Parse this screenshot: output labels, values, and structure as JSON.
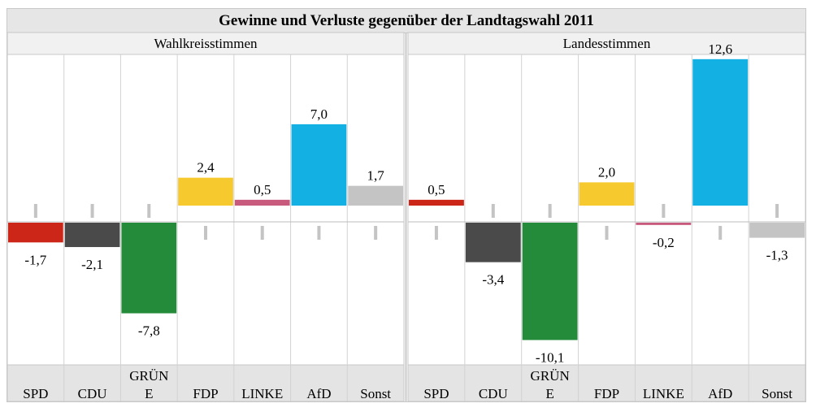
{
  "title": "Gewinne und Verluste gegenüber der Landtagswahl 2011",
  "colors": {
    "SPD": "#cc2618",
    "CDU": "#4a4a4a",
    "GRÜNE": "#238b3a",
    "FDP": "#f6c92e",
    "LINKE": "#c85a7e",
    "AfD": "#12b0e3",
    "Sonst": "#c4c4c4"
  },
  "chart_data": [
    {
      "type": "bar",
      "title": "Wahlkreisstimmen",
      "categories": [
        "SPD",
        "CDU",
        "GRÜNE",
        "FDP",
        "LINKE",
        "AfD",
        "Sonst"
      ],
      "category_labels": [
        "SPD",
        "CDU",
        "GRÜN\nE",
        "FDP",
        "LINKE",
        "AfD",
        "Sonst"
      ],
      "values": [
        -1.7,
        -2.1,
        -7.8,
        2.4,
        0.5,
        7.0,
        1.7
      ],
      "value_labels": [
        "-1,7",
        "-2,1",
        "-7,8",
        "2,4",
        "0,5",
        "7,0",
        "1,7"
      ]
    },
    {
      "type": "bar",
      "title": "Landesstimmen",
      "categories": [
        "SPD",
        "CDU",
        "GRÜNE",
        "FDP",
        "LINKE",
        "AfD",
        "Sonst"
      ],
      "category_labels": [
        "SPD",
        "CDU",
        "GRÜN\nE",
        "FDP",
        "LINKE",
        "AfD",
        "Sonst"
      ],
      "values": [
        0.5,
        -3.4,
        -10.1,
        2.0,
        -0.2,
        12.6,
        -1.3
      ],
      "value_labels": [
        "0,5",
        "-3,4",
        "-10,1",
        "2,0",
        "-0,2",
        "12,6",
        "-1,3"
      ]
    }
  ]
}
